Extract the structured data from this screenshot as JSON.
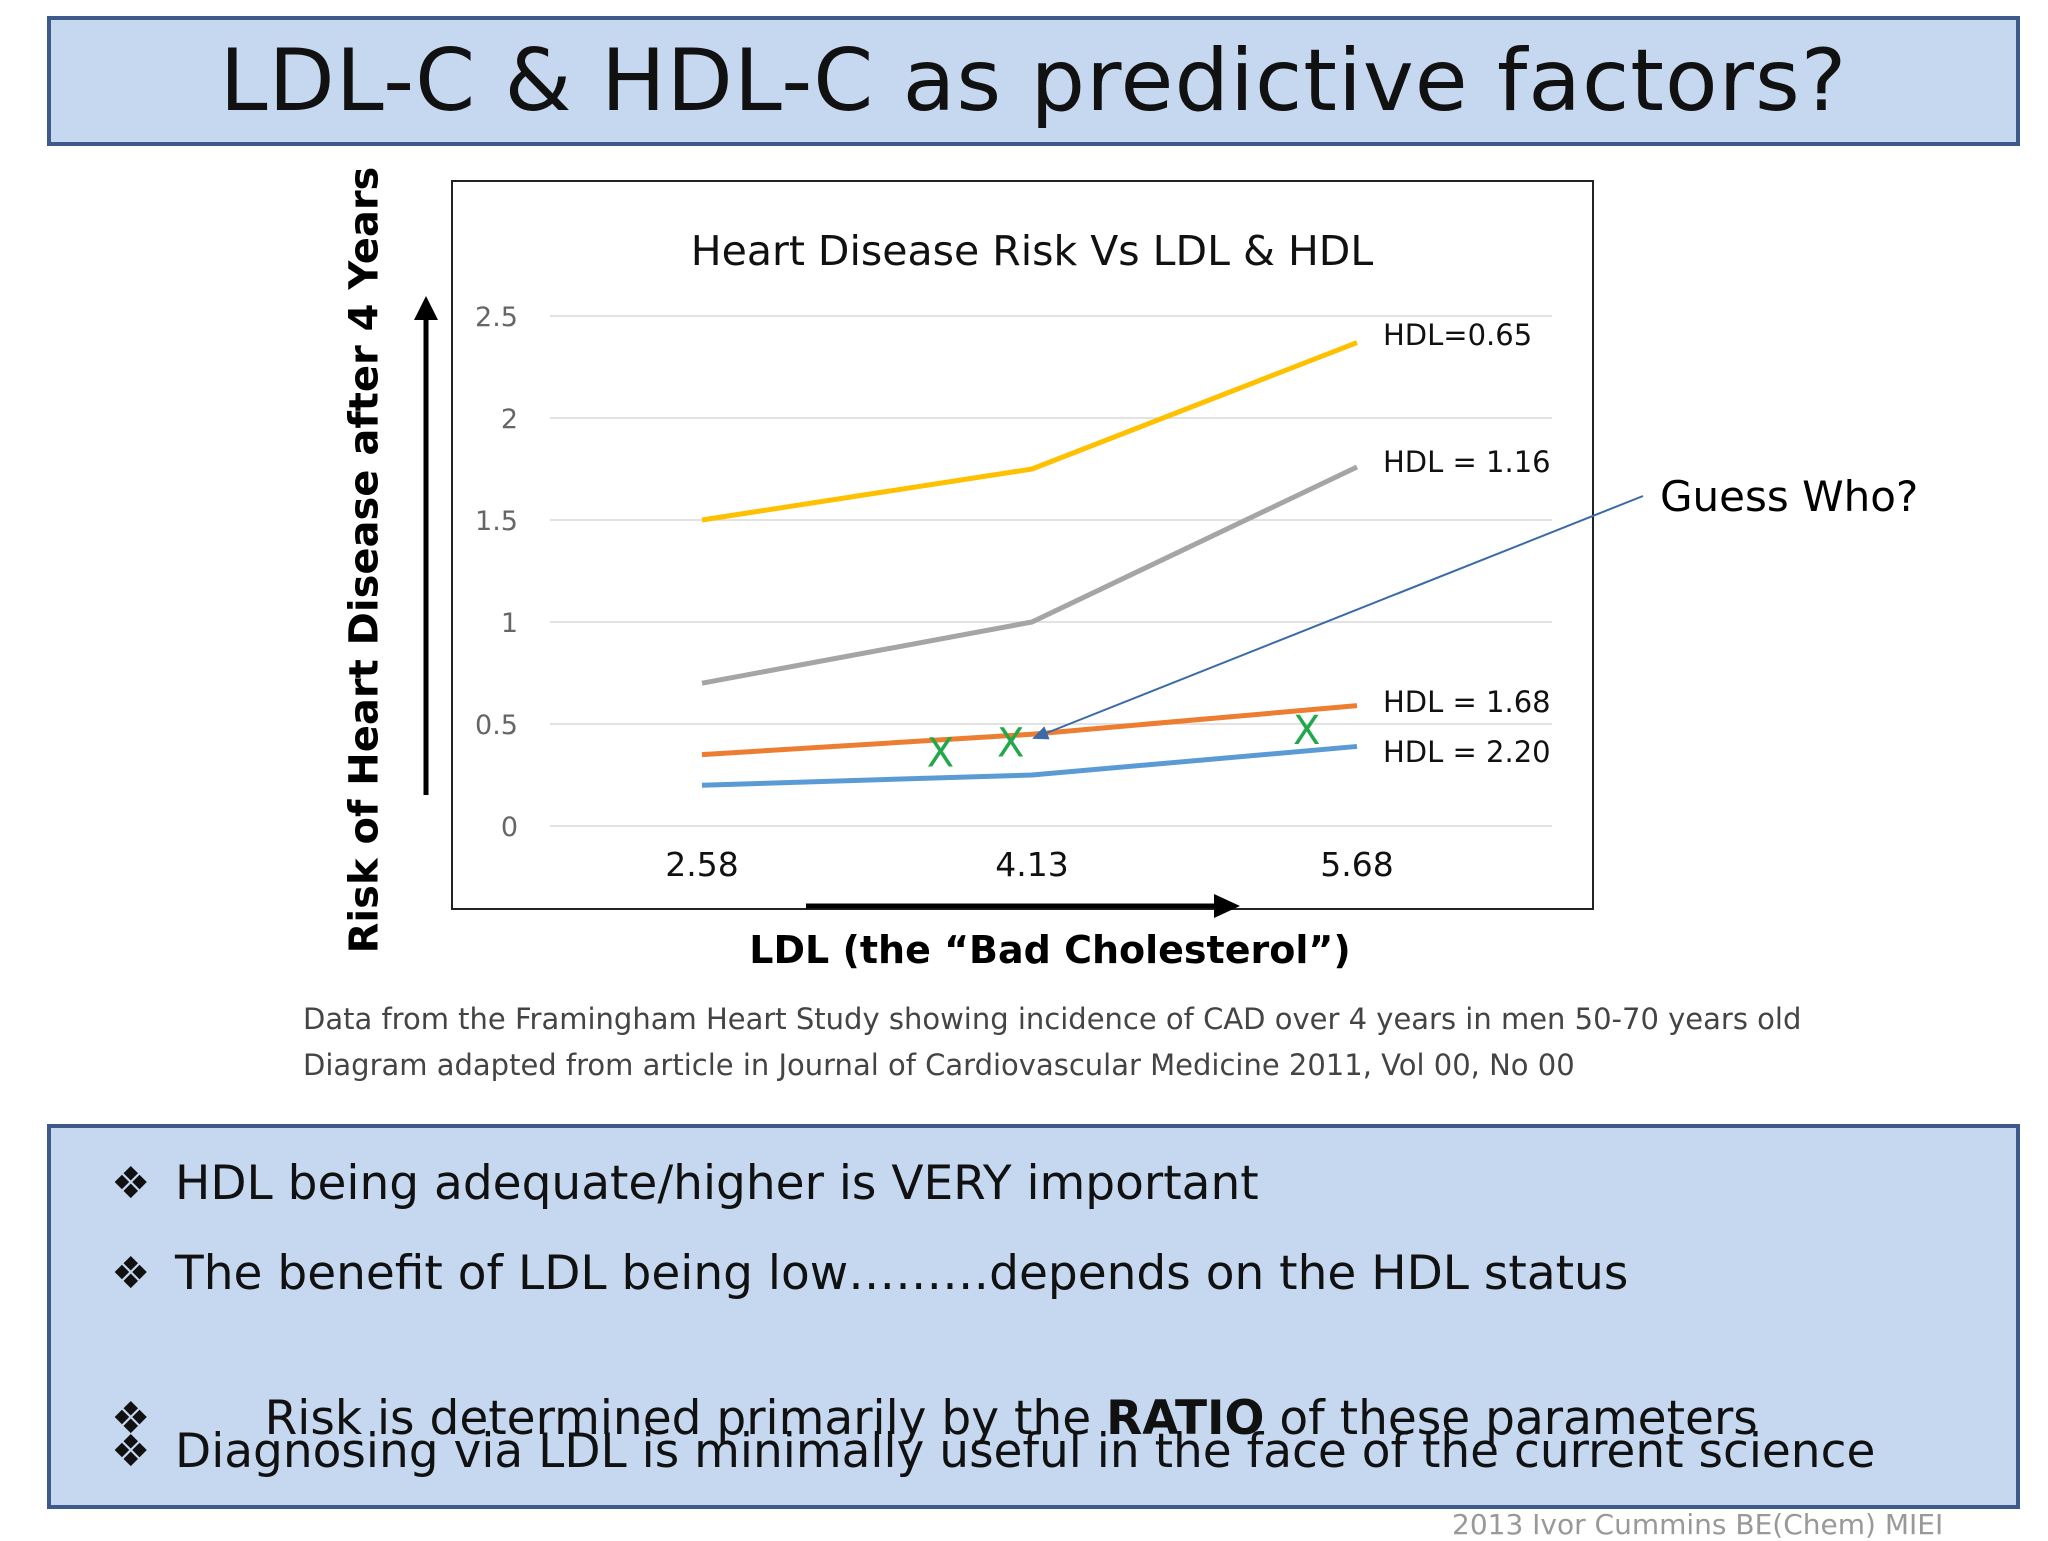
{
  "slide": {
    "title": "LDL-C & HDL-C as predictive factors?",
    "y_axis_label": "Risk of Heart Disease after 4 Years",
    "x_axis_label": "LDL (the “Bad Cholesterol”)",
    "callout": "Guess Who?",
    "source_line_1": "Data from the Framingham Heart Study showing incidence of CAD over 4 years in men 50-70 years old",
    "source_line_2": "Diagram adapted from article in Journal of Cardiovascular Medicine 2011, Vol 00, No 00",
    "bullet_mark": "❖",
    "bullets": [
      {
        "before": "HDL being adequate/higher is VERY important",
        "bold": "",
        "after": ""
      },
      {
        "before": "The benefit of LDL being low………depends on the HDL status",
        "bold": "",
        "after": ""
      },
      {
        "before": "Risk is determined primarily by the ",
        "bold": "RATIO",
        "after": " of these parameters"
      },
      {
        "before": "Diagnosing via LDL is minimally useful in the face of the current science",
        "bold": "",
        "after": ""
      }
    ],
    "copyright": "2013 Ivor Cummins BE(Chem) MIEI",
    "colors": {
      "box_fill": "#c5d8f0",
      "box_border": "#3d5a8a",
      "marker": "#22a84a",
      "arrow": "#3a6aa8"
    }
  },
  "chart_data": {
    "type": "line",
    "title": "Heart Disease Risk Vs LDL & HDL",
    "categories": [
      "2.58",
      "4.13",
      "5.68"
    ],
    "ylim": [
      0,
      2.5
    ],
    "yticks": [
      "0",
      "0.5",
      "1",
      "1.5",
      "2",
      "2.5"
    ],
    "grid": true,
    "series": [
      {
        "name": "HDL=0.65",
        "values": [
          1.5,
          1.75,
          2.37
        ],
        "color": "#ffc000"
      },
      {
        "name": "HDL = 1.16",
        "values": [
          0.7,
          1.0,
          1.76
        ],
        "color": "#a5a5a5"
      },
      {
        "name": "HDL = 1.68",
        "values": [
          0.35,
          0.45,
          0.59
        ],
        "color": "#ed7d31"
      },
      {
        "name": "HDL = 2.20",
        "values": [
          0.2,
          0.25,
          0.39
        ],
        "color": "#5b9bd5"
      }
    ],
    "markers": [
      {
        "label": "X",
        "x": 3.7,
        "y": 0.36
      },
      {
        "label": "X",
        "x": 4.03,
        "y": 0.41
      },
      {
        "label": "X",
        "x": 5.44,
        "y": 0.47
      }
    ]
  }
}
